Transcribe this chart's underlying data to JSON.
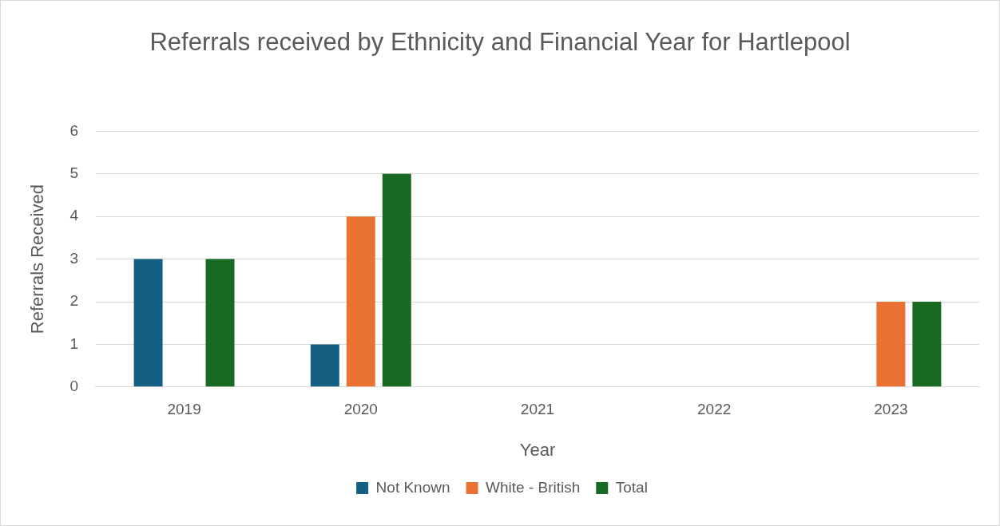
{
  "chart_data": {
    "type": "bar",
    "title": "Referrals received by Ethnicity and Financial Year for Hartlepool",
    "xlabel": "Year",
    "ylabel": "Referrals Received",
    "categories": [
      "2019",
      "2020",
      "2021",
      "2022",
      "2023"
    ],
    "series": [
      {
        "name": "Not Known",
        "color": "#156082",
        "values": [
          3,
          1,
          null,
          null,
          null
        ]
      },
      {
        "name": "White - British",
        "color": "#e97132",
        "values": [
          null,
          4,
          null,
          null,
          2
        ]
      },
      {
        "name": "Total",
        "color": "#196b24",
        "values": [
          3,
          5,
          null,
          null,
          2
        ]
      }
    ],
    "ylim": [
      0,
      6
    ],
    "yticks": [
      0,
      1,
      2,
      3,
      4,
      5,
      6
    ],
    "grid": "y",
    "legend": "bottom"
  }
}
